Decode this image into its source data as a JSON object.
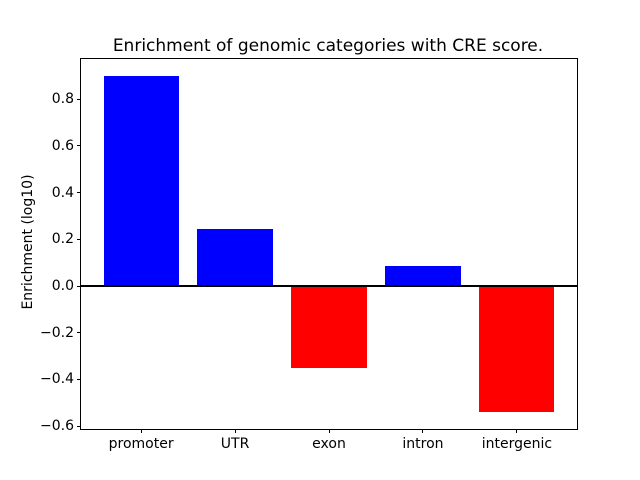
{
  "chart_data": {
    "type": "bar",
    "title": "Enrichment of genomic categories with CRE score.",
    "xlabel": "",
    "ylabel": "Enrichment (log10)",
    "categories": [
      "promoter",
      "UTR",
      "exon",
      "intron",
      "intergenic"
    ],
    "values": [
      0.9,
      0.245,
      -0.35,
      0.085,
      -0.54
    ],
    "positive_color": "#0000ff",
    "negative_color": "#ff0000",
    "zero_line_color": "#000000",
    "bar_width": 0.8,
    "ylim": [
      -0.612,
      0.972
    ],
    "xlim": [
      -0.64,
      4.64
    ],
    "y_ticks": [
      {
        "v": 0.8,
        "label": "0.8"
      },
      {
        "v": 0.6,
        "label": "0.6"
      },
      {
        "v": 0.4,
        "label": "0.4"
      },
      {
        "v": 0.2,
        "label": "0.2"
      },
      {
        "v": 0.0,
        "label": "0.0"
      },
      {
        "v": -0.2,
        "label": "−0.2"
      },
      {
        "v": -0.4,
        "label": "−0.4"
      },
      {
        "v": -0.6,
        "label": "−0.6"
      }
    ],
    "grid": false,
    "legend": null
  }
}
